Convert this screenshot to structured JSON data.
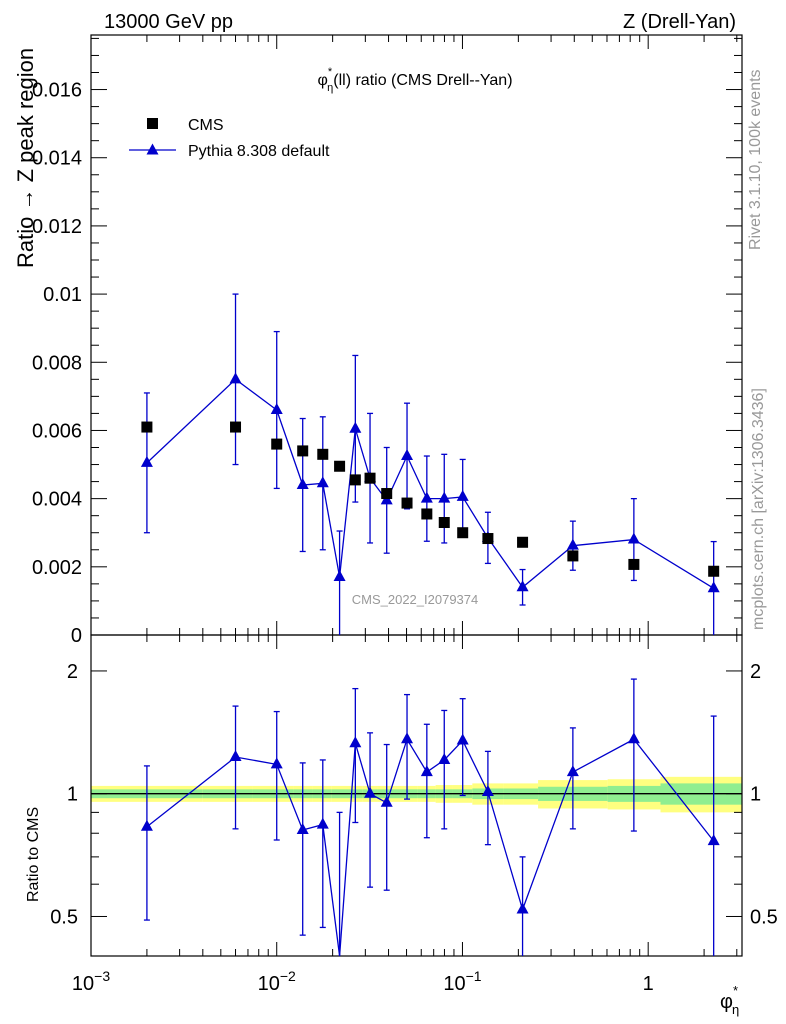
{
  "header": {
    "energy": "13000 GeV pp",
    "process": "Z (Drell-Yan)",
    "side_rivet": "Rivet 3.1.10,  100k events",
    "side_mcplots": "mcplots.cern.ch [arXiv:1306.3436]",
    "watermark": "CMS_2022_I2079374"
  },
  "chart_data": [
    {
      "type": "scatter",
      "title_main": "φ",
      "title_sup": "*",
      "title_sub": "η",
      "title_rest": "(ll) ratio (CMS Drell--Yan)",
      "ylabel": "Ratio → Z peak region",
      "xscale": "log",
      "xlim": [
        0.001,
        3.2
      ],
      "ylim": [
        0,
        0.0176
      ],
      "yticks": [
        {
          "v": 0,
          "label": "0"
        },
        {
          "v": 0.002,
          "label": "0.002"
        },
        {
          "v": 0.004,
          "label": "0.004"
        },
        {
          "v": 0.006,
          "label": "0.006"
        },
        {
          "v": 0.008,
          "label": "0.008"
        },
        {
          "v": 0.01,
          "label": "0.01"
        },
        {
          "v": 0.012,
          "label": "0.012"
        },
        {
          "v": 0.014,
          "label": "0.014"
        },
        {
          "v": 0.016,
          "label": "0.016"
        }
      ],
      "legend_position": "top-left",
      "series": [
        {
          "name": "CMS",
          "marker": "square",
          "color": "#000000",
          "x": [
            0.002,
            0.006,
            0.01,
            0.0138,
            0.0177,
            0.0218,
            0.0265,
            0.0318,
            0.0391,
            0.0503,
            0.0643,
            0.0798,
            0.1003,
            0.1371,
            0.2107,
            0.3931,
            0.8374,
            2.2524
          ],
          "y": [
            0.0061,
            0.0061,
            0.0056,
            0.0054,
            0.0053,
            0.00495,
            0.00455,
            0.0046,
            0.00415,
            0.00387,
            0.00355,
            0.0033,
            0.003,
            0.00283,
            0.00272,
            0.00232,
            0.00207,
            0.00187
          ]
        },
        {
          "name": "Pythia 8.308 default",
          "marker": "triangle",
          "color": "#0000cc",
          "x": [
            0.002,
            0.006,
            0.01,
            0.0138,
            0.0177,
            0.0218,
            0.0265,
            0.0318,
            0.0391,
            0.0503,
            0.0643,
            0.0798,
            0.1003,
            0.1371,
            0.2107,
            0.3931,
            0.8374,
            2.2524
          ],
          "y": [
            0.00505,
            0.0075,
            0.0066,
            0.0044,
            0.00445,
            0.0017,
            0.00605,
            0.0046,
            0.00395,
            0.00525,
            0.004,
            0.004,
            0.00405,
            0.00285,
            0.0014,
            0.00262,
            0.0028,
            0.00137
          ],
          "yerr_low": [
            0.00205,
            0.0025,
            0.0023,
            0.00195,
            0.00195,
            0.0017,
            0.00215,
            0.0019,
            0.00155,
            0.00155,
            0.00125,
            0.0013,
            0.0011,
            0.00075,
            0.00052,
            0.00072,
            0.0012,
            0.00137
          ],
          "yerr_high": [
            0.00205,
            0.0025,
            0.0023,
            0.00195,
            0.00195,
            0.00135,
            0.00215,
            0.0019,
            0.00155,
            0.00155,
            0.00125,
            0.0013,
            0.0011,
            0.00075,
            0.00052,
            0.00072,
            0.0012,
            0.00137
          ]
        }
      ]
    },
    {
      "type": "line",
      "ylabel": "Ratio to CMS",
      "xlabel_main": "φ",
      "xlabel_sup": "*",
      "xlabel_sub": "η",
      "xscale": "log",
      "xlim": [
        0.001,
        3.2
      ],
      "yscale": "log",
      "ylim": [
        0.4,
        2.45
      ],
      "xticks": [
        {
          "base": "10",
          "exp": "−3",
          "v": 0.001
        },
        {
          "base": "10",
          "exp": "−2",
          "v": 0.01
        },
        {
          "base": "10",
          "exp": "−1",
          "v": 0.1
        },
        {
          "base": "1",
          "exp": "",
          "v": 1
        }
      ],
      "yticks": [
        {
          "v": 0.5,
          "label": "0.5"
        },
        {
          "v": 1,
          "label": "1"
        },
        {
          "v": 2,
          "label": "2"
        }
      ],
      "band_edges": [
        0.001,
        0.004,
        0.0074,
        0.0123,
        0.0155,
        0.0198,
        0.0242,
        0.0291,
        0.0349,
        0.0436,
        0.057,
        0.0717,
        0.0889,
        0.113,
        0.1655,
        0.2554,
        0.605,
        1.165,
        3.2
      ],
      "band_stat": [
        0.025,
        0.025,
        0.025,
        0.025,
        0.025,
        0.025,
        0.025,
        0.025,
        0.025,
        0.025,
        0.025,
        0.025,
        0.025,
        0.03,
        0.03,
        0.04,
        0.045,
        0.06
      ],
      "band_total": [
        0.045,
        0.045,
        0.045,
        0.045,
        0.045,
        0.045,
        0.045,
        0.045,
        0.045,
        0.045,
        0.045,
        0.05,
        0.05,
        0.06,
        0.06,
        0.08,
        0.085,
        0.1
      ],
      "band_stat_color": "#90ee90",
      "band_total_color": "#ffff80",
      "series": [
        {
          "name": "Pythia 8.308 default",
          "color": "#0000cc",
          "x": [
            0.002,
            0.006,
            0.01,
            0.0138,
            0.0177,
            0.0218,
            0.0265,
            0.0318,
            0.0391,
            0.0503,
            0.0643,
            0.0798,
            0.1003,
            0.1371,
            0.2107,
            0.3931,
            0.8374,
            2.2524
          ],
          "y": [
            0.83,
            1.23,
            1.18,
            0.815,
            0.84,
            0.345,
            1.33,
            1.0,
            0.95,
            1.36,
            1.13,
            1.21,
            1.35,
            1.01,
            0.52,
            1.13,
            1.36,
            0.765
          ],
          "y_low": [
            0.49,
            0.82,
            0.77,
            0.45,
            0.47,
            0.34,
            0.85,
            0.59,
            0.58,
            0.97,
            0.78,
            0.82,
            0.99,
            0.75,
            0.34,
            0.82,
            0.81,
            0.32
          ],
          "y_high": [
            1.17,
            1.64,
            1.59,
            1.19,
            1.21,
            0.9,
            1.81,
            1.41,
            1.32,
            1.75,
            1.48,
            1.6,
            1.71,
            1.27,
            0.7,
            1.45,
            1.91,
            1.55
          ]
        }
      ]
    }
  ]
}
